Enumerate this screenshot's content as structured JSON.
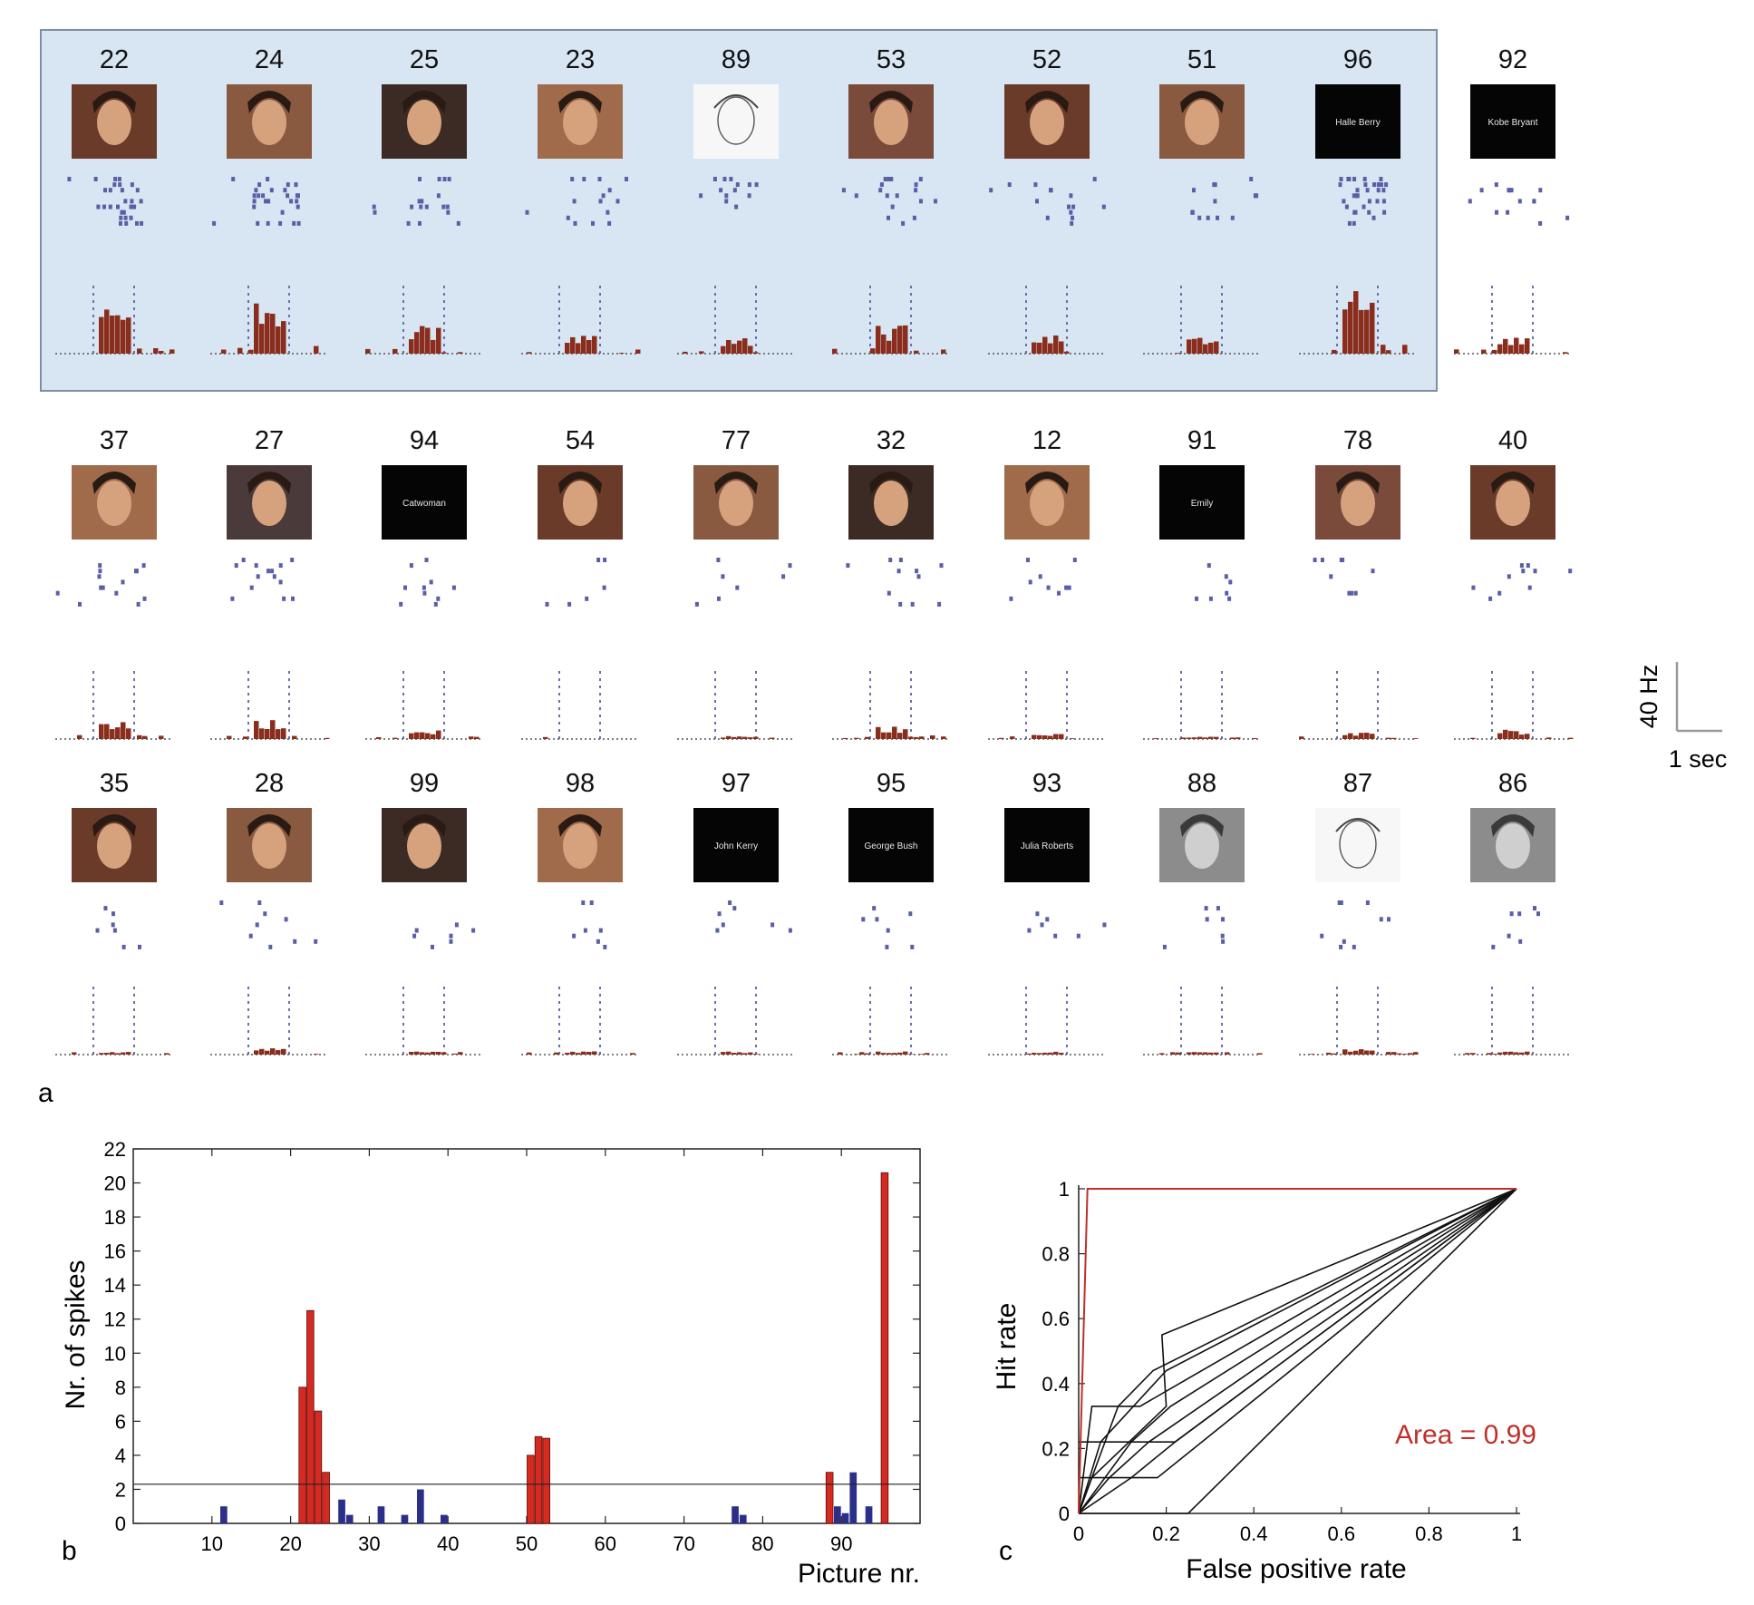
{
  "panel_a": {
    "letter": "a",
    "scale_bar": {
      "y_label": "40 Hz",
      "x_label": "1 sec"
    },
    "rows": [
      [
        {
          "id": "22",
          "kind": "photo",
          "caption": ""
        },
        {
          "id": "24",
          "kind": "photo",
          "caption": ""
        },
        {
          "id": "25",
          "kind": "photo",
          "caption": ""
        },
        {
          "id": "23",
          "kind": "photo",
          "caption": ""
        },
        {
          "id": "89",
          "kind": "sketch",
          "caption": ""
        },
        {
          "id": "53",
          "kind": "photo",
          "caption": ""
        },
        {
          "id": "52",
          "kind": "photo",
          "caption": ""
        },
        {
          "id": "51",
          "kind": "photo",
          "caption": ""
        },
        {
          "id": "96",
          "kind": "text",
          "caption": "Halle Berry"
        },
        {
          "id": "92",
          "kind": "text",
          "caption": "Kobe Bryant"
        }
      ],
      [
        {
          "id": "37",
          "kind": "photo",
          "caption": ""
        },
        {
          "id": "27",
          "kind": "photo",
          "caption": ""
        },
        {
          "id": "94",
          "kind": "text",
          "caption": "Catwoman"
        },
        {
          "id": "54",
          "kind": "photo",
          "caption": ""
        },
        {
          "id": "77",
          "kind": "photo",
          "caption": ""
        },
        {
          "id": "32",
          "kind": "photo",
          "caption": ""
        },
        {
          "id": "12",
          "kind": "photo",
          "caption": ""
        },
        {
          "id": "91",
          "kind": "text",
          "caption": "Emily"
        },
        {
          "id": "78",
          "kind": "photo",
          "caption": ""
        },
        {
          "id": "40",
          "kind": "photo",
          "caption": ""
        }
      ],
      [
        {
          "id": "35",
          "kind": "photo",
          "caption": ""
        },
        {
          "id": "28",
          "kind": "photo",
          "caption": ""
        },
        {
          "id": "99",
          "kind": "photo",
          "caption": ""
        },
        {
          "id": "98",
          "kind": "photo",
          "caption": ""
        },
        {
          "id": "97",
          "kind": "text",
          "caption": "John Kerry"
        },
        {
          "id": "95",
          "kind": "text",
          "caption": "George Bush"
        },
        {
          "id": "93",
          "kind": "text",
          "caption": "Julia Roberts"
        },
        {
          "id": "88",
          "kind": "photo-gray",
          "caption": ""
        },
        {
          "id": "87",
          "kind": "sketch",
          "caption": ""
        },
        {
          "id": "86",
          "kind": "photo-gray",
          "caption": ""
        }
      ]
    ],
    "response_strength": [
      [
        0.9,
        0.85,
        0.45,
        0.35,
        0.25,
        0.45,
        0.35,
        0.3,
        1.0,
        0.3
      ],
      [
        0.3,
        0.3,
        0.15,
        0.0,
        0.05,
        0.2,
        0.1,
        0.05,
        0.1,
        0.15
      ],
      [
        0.05,
        0.1,
        0.05,
        0.05,
        0.05,
        0.05,
        0.05,
        0.05,
        0.1,
        0.05
      ]
    ],
    "colors": {
      "raster": "#5a5fa6",
      "histogram": "#8a2d1c",
      "highlight_bg": "#d8e6f3",
      "highlight_border": "#7d8ea6"
    }
  },
  "panel_b": {
    "letter": "b",
    "chart_data": {
      "type": "bar",
      "xlabel": "Picture nr.",
      "ylabel": "Nr. of spikes",
      "xlim": [
        0,
        100
      ],
      "ylim": [
        0,
        22
      ],
      "xticks": [
        10,
        20,
        30,
        40,
        50,
        60,
        70,
        80,
        90
      ],
      "yticks": [
        0,
        2,
        4,
        6,
        8,
        10,
        12,
        14,
        16,
        18,
        20,
        22
      ],
      "threshold": 2.3,
      "responsive_color": "#d42a22",
      "other_color": "#2b2f8a",
      "bars": [
        {
          "x": 12,
          "y": 1.0,
          "responsive": false
        },
        {
          "x": 22,
          "y": 8.0,
          "responsive": true
        },
        {
          "x": 23,
          "y": 12.5,
          "responsive": true
        },
        {
          "x": 24,
          "y": 6.6,
          "responsive": true
        },
        {
          "x": 25,
          "y": 3.0,
          "responsive": true
        },
        {
          "x": 27,
          "y": 1.4,
          "responsive": false
        },
        {
          "x": 28,
          "y": 0.5,
          "responsive": false
        },
        {
          "x": 32,
          "y": 1.0,
          "responsive": false
        },
        {
          "x": 35,
          "y": 0.5,
          "responsive": false
        },
        {
          "x": 37,
          "y": 2.0,
          "responsive": false
        },
        {
          "x": 40,
          "y": 0.5,
          "responsive": false
        },
        {
          "x": 51,
          "y": 4.0,
          "responsive": true
        },
        {
          "x": 52,
          "y": 5.1,
          "responsive": true
        },
        {
          "x": 53,
          "y": 5.0,
          "responsive": true
        },
        {
          "x": 77,
          "y": 1.0,
          "responsive": false
        },
        {
          "x": 78,
          "y": 0.5,
          "responsive": false
        },
        {
          "x": 89,
          "y": 3.0,
          "responsive": true
        },
        {
          "x": 90,
          "y": 1.0,
          "responsive": false
        },
        {
          "x": 91,
          "y": 0.6,
          "responsive": false
        },
        {
          "x": 92,
          "y": 3.0,
          "responsive": false
        },
        {
          "x": 94,
          "y": 1.0,
          "responsive": false
        },
        {
          "x": 96,
          "y": 20.6,
          "responsive": true
        }
      ]
    }
  },
  "panel_c": {
    "letter": "c",
    "chart_data": {
      "type": "line",
      "xlabel": "False positive rate",
      "ylabel": "Hit rate",
      "xlim": [
        0,
        1
      ],
      "ylim": [
        0,
        1
      ],
      "xticks": [
        0,
        0.2,
        0.4,
        0.6,
        0.8,
        1
      ],
      "yticks": [
        0,
        0.2,
        0.4,
        0.6,
        0.8,
        1
      ],
      "annotation": "Area = 0.99",
      "highlight_color": "#c0302a",
      "curves": [
        {
          "highlight": true,
          "points": [
            [
              0,
              0
            ],
            [
              0.01,
              0.5
            ],
            [
              0.02,
              1
            ],
            [
              1,
              1
            ]
          ]
        },
        {
          "highlight": false,
          "points": [
            [
              0,
              0
            ],
            [
              0.25,
              0
            ],
            [
              1,
              1
            ]
          ]
        },
        {
          "highlight": false,
          "points": [
            [
              0,
              0
            ],
            [
              0.12,
              0.11
            ],
            [
              0.22,
              0.22
            ],
            [
              1,
              1
            ]
          ]
        },
        {
          "highlight": false,
          "points": [
            [
              0,
              0
            ],
            [
              0.03,
              0.11
            ],
            [
              0.2,
              0.33
            ],
            [
              0.19,
              0.55
            ],
            [
              1,
              1
            ]
          ]
        },
        {
          "highlight": false,
          "points": [
            [
              0,
              0
            ],
            [
              0.05,
              0.22
            ],
            [
              0.2,
              0.44
            ],
            [
              1,
              1
            ]
          ]
        },
        {
          "highlight": false,
          "points": [
            [
              0,
              0
            ],
            [
              0.09,
              0.33
            ],
            [
              0.17,
              0.44
            ],
            [
              1,
              1
            ]
          ]
        },
        {
          "highlight": false,
          "points": [
            [
              0,
              0
            ],
            [
              0.12,
              0.22
            ],
            [
              0.21,
              0.33
            ],
            [
              1,
              1
            ]
          ]
        },
        {
          "highlight": false,
          "points": [
            [
              0,
              0
            ],
            [
              0.02,
              0.22
            ],
            [
              0.03,
              0.33
            ],
            [
              0.14,
              0.33
            ],
            [
              1,
              1
            ]
          ]
        },
        {
          "highlight": false,
          "points": [
            [
              0,
              0
            ],
            [
              0.07,
              0.11
            ],
            [
              0.16,
              0.22
            ],
            [
              1,
              1
            ]
          ]
        },
        {
          "highlight": false,
          "points": [
            [
              0,
              0.11
            ],
            [
              0.18,
              0.11
            ],
            [
              1,
              1
            ]
          ]
        },
        {
          "highlight": false,
          "points": [
            [
              0,
              0.22
            ],
            [
              0.22,
              0.22
            ],
            [
              1,
              1
            ]
          ]
        }
      ]
    }
  }
}
